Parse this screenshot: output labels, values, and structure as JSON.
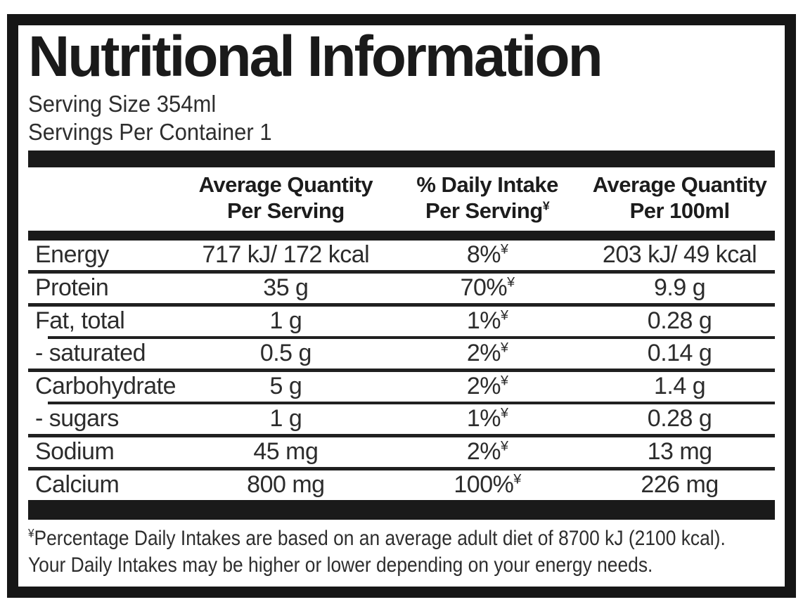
{
  "label": {
    "title": "Nutritional Information",
    "serving_size": "Serving Size 354ml",
    "servings_per_container": "Servings Per Container 1",
    "footnote_symbol": "¥"
  },
  "table": {
    "columns": {
      "per_serving": {
        "line1": "Average Quantity",
        "line2": "Per Serving"
      },
      "daily_intake": {
        "line1": "% Daily Intake",
        "line2": "Per Serving"
      },
      "per_100ml": {
        "line1": "Average Quantity",
        "line2": "Per 100ml"
      }
    },
    "rows": [
      {
        "nutrient": "Energy",
        "per_serving": "717 kJ/ 172 kcal",
        "daily_intake": "8%",
        "per_100ml": "203 kJ/ 49 kcal",
        "divider": "full"
      },
      {
        "nutrient": "Protein",
        "per_serving": "35 g",
        "daily_intake": "70%",
        "per_100ml": "9.9 g",
        "divider": "full"
      },
      {
        "nutrient": "Fat, total",
        "per_serving": "1 g",
        "daily_intake": "1%",
        "per_100ml": "0.28 g",
        "divider": "indent"
      },
      {
        "nutrient": "- saturated",
        "per_serving": "0.5 g",
        "daily_intake": "2%",
        "per_100ml": "0.14 g",
        "divider": "full"
      },
      {
        "nutrient": "Carbohydrate",
        "per_serving": "5 g",
        "daily_intake": "2%",
        "per_100ml": "1.4 g",
        "divider": "indent"
      },
      {
        "nutrient": "- sugars",
        "per_serving": "1 g",
        "daily_intake": "1%",
        "per_100ml": "0.28 g",
        "divider": "full"
      },
      {
        "nutrient": "Sodium",
        "per_serving": "45 mg",
        "daily_intake": "2%",
        "per_100ml": "13 mg",
        "divider": "full"
      },
      {
        "nutrient": "Calcium",
        "per_serving": "800 mg",
        "daily_intake": "100%",
        "per_100ml": "226 mg",
        "divider": "none"
      }
    ]
  },
  "footnote": {
    "line1": "Percentage Daily Intakes are based on an average adult diet of 8700 kJ (2100 kcal).",
    "line2": "Your Daily Intakes may be higher or lower depending on your energy needs."
  },
  "colors": {
    "ink": "#1a1a1a",
    "text": "#2e2e2e",
    "background": "#ffffff"
  }
}
